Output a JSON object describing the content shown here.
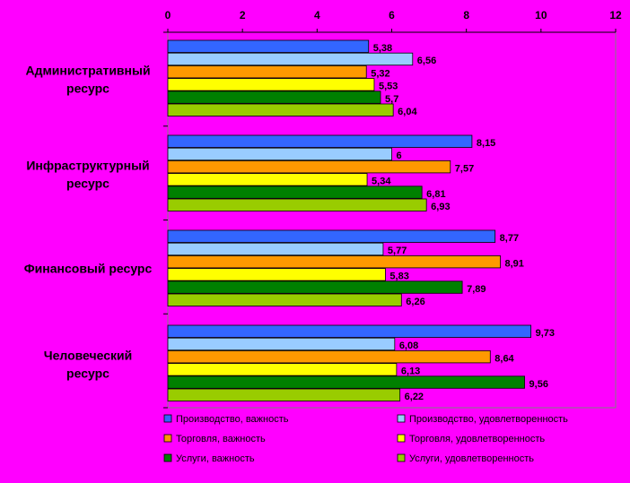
{
  "chart_data": {
    "type": "bar",
    "orientation": "horizontal",
    "xlim": [
      0,
      12
    ],
    "x_ticks": [
      "0",
      "2",
      "4",
      "6",
      "8",
      "10",
      "12"
    ],
    "x_axis_position": "top",
    "grid": false,
    "legend_placement": "bottom",
    "categories": [
      "Административный ресурс",
      "Инфраструктурный ресурс",
      "Финансовый ресурс",
      "Человеческий ресурс"
    ],
    "series": [
      {
        "name": "Производство, важность",
        "color": "#3366FF",
        "values": [
          5.38,
          8.15,
          8.77,
          9.73
        ],
        "labels": [
          "5,38",
          "8,15",
          "8,77",
          "9,73"
        ]
      },
      {
        "name": "Производство, удовлетворенность",
        "color": "#99CCFF",
        "values": [
          6.56,
          6,
          5.77,
          6.08
        ],
        "labels": [
          "6,56",
          "6",
          "5,77",
          "6,08"
        ]
      },
      {
        "name": "Торговля, важность",
        "color": "#FF9900",
        "values": [
          5.32,
          7.57,
          8.91,
          8.64
        ],
        "labels": [
          "5,32",
          "7,57",
          "8,91",
          "8,64"
        ]
      },
      {
        "name": "Торговля, удовлетворенность",
        "color": "#FFFF00",
        "values": [
          5.53,
          5.34,
          5.83,
          6.13
        ],
        "labels": [
          "5,53",
          "5,34",
          "5,83",
          "6,13"
        ]
      },
      {
        "name": "Услуги, важность",
        "color": "#008000",
        "values": [
          5.7,
          6.81,
          7.89,
          9.56
        ],
        "labels": [
          "5,7",
          "6,81",
          "7,89",
          "9,56"
        ]
      },
      {
        "name": "Услуги, удовлетворенность",
        "color": "#99CC00",
        "values": [
          6.04,
          6.93,
          6.26,
          6.22
        ],
        "labels": [
          "6,04",
          "6,93",
          "6,26",
          "6,22"
        ]
      }
    ]
  },
  "colors": {
    "background": "#FF00FF"
  }
}
